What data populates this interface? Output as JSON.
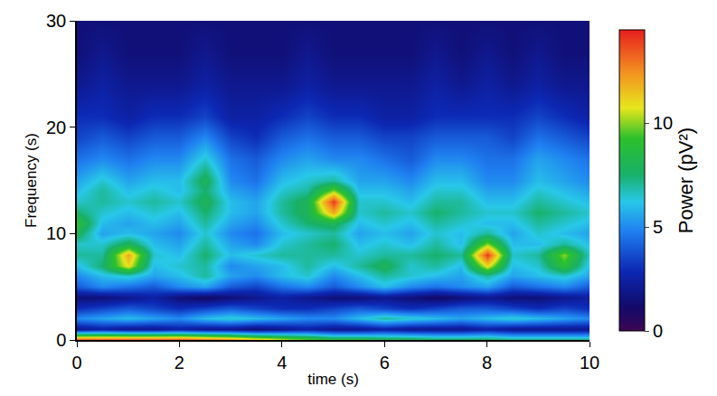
{
  "chart_data": {
    "type": "heatmap",
    "xlabel": "time (s)",
    "ylabel": "Frequency (s)",
    "xlim": [
      0,
      10
    ],
    "xticks": [
      0,
      2,
      4,
      6,
      8,
      10
    ],
    "ylim": [
      0,
      30
    ],
    "yticks": [
      0,
      10,
      20,
      30
    ],
    "x": [
      0,
      0.5,
      1,
      1.5,
      2,
      2.5,
      3,
      3.5,
      4,
      4.5,
      5,
      5.5,
      6,
      6.5,
      7,
      7.5,
      8,
      8.5,
      9,
      9.5,
      10
    ],
    "y": [
      0,
      1,
      2,
      3,
      4,
      5,
      6,
      7,
      8,
      9,
      10,
      11,
      12,
      13,
      14,
      15,
      17,
      19,
      21,
      24,
      27,
      30
    ],
    "z": [
      [
        14,
        14,
        14,
        14,
        14,
        13.5,
        13,
        12,
        11,
        10,
        9,
        9,
        8.5,
        8.5,
        8,
        8,
        8,
        7.5,
        7.5,
        7.5,
        7.5
      ],
      [
        2,
        2.5,
        2,
        2,
        2.5,
        2,
        2,
        1.5,
        2,
        2.5,
        2,
        2,
        2.5,
        2,
        2,
        2,
        2.5,
        2,
        2,
        2,
        2
      ],
      [
        5,
        5.5,
        6,
        5.5,
        5,
        6,
        6.5,
        6,
        5.5,
        5,
        5,
        6,
        7,
        6.5,
        6,
        5.5,
        6,
        6.5,
        6,
        5.5,
        5
      ],
      [
        3,
        3.5,
        4,
        3.5,
        3,
        3.5,
        4,
        3.5,
        3,
        3,
        3.5,
        4,
        3.5,
        3,
        3.5,
        4,
        4,
        3.5,
        3,
        3.5,
        3
      ],
      [
        1.5,
        1.5,
        2,
        2.5,
        1.5,
        1,
        1.5,
        2,
        2.5,
        2,
        1.5,
        1.5,
        2,
        1.5,
        1,
        1.5,
        2,
        1.5,
        1.5,
        2,
        2.5
      ],
      [
        4,
        5,
        4.5,
        4,
        5,
        5.5,
        4,
        3.5,
        4.5,
        5,
        4,
        5,
        6,
        5,
        4.5,
        5,
        5.5,
        4,
        4.5,
        5,
        4
      ],
      [
        5,
        6,
        6.5,
        5.5,
        6,
        7,
        5.5,
        5,
        6,
        6.5,
        5,
        6,
        7,
        6.5,
        6,
        5.5,
        7,
        5.5,
        6,
        6.5,
        5.5
      ],
      [
        6,
        7.5,
        11,
        6,
        6.5,
        7,
        5,
        5.5,
        6,
        7,
        6,
        7,
        8,
        6.5,
        7,
        6,
        11,
        6,
        6.5,
        9,
        6
      ],
      [
        7,
        7,
        12,
        6.5,
        6,
        7.5,
        6,
        6.5,
        7,
        7,
        7,
        6.5,
        7,
        7,
        7.5,
        7,
        14,
        6.5,
        7,
        10,
        6.5
      ],
      [
        6.5,
        6.5,
        8,
        6,
        5.5,
        7,
        5.5,
        5,
        6.5,
        7,
        7.5,
        6,
        6.5,
        6,
        7,
        6,
        10,
        6,
        6,
        7,
        6
      ],
      [
        8,
        5.5,
        6,
        5.5,
        5,
        6.5,
        5,
        4.5,
        6,
        6.5,
        7,
        5.5,
        6,
        5.5,
        6.5,
        6,
        7,
        5.5,
        6.5,
        6,
        5.5
      ],
      [
        9,
        6,
        5.5,
        6,
        5.5,
        7,
        5.5,
        5,
        6.5,
        7.5,
        8,
        6,
        6.5,
        6,
        7,
        6.5,
        6,
        6,
        7,
        6.5,
        6
      ],
      [
        7.5,
        6.5,
        6,
        6.5,
        6,
        7.5,
        6,
        5.5,
        7,
        8,
        12,
        6.5,
        7,
        6.5,
        7.5,
        7,
        6.5,
        6.5,
        7.5,
        7,
        6.5
      ],
      [
        6.5,
        7,
        6.5,
        7,
        6.5,
        8,
        6,
        5.5,
        7,
        8,
        14,
        6.5,
        6.5,
        6,
        7,
        7,
        6,
        6,
        7,
        6.5,
        6
      ],
      [
        6,
        7,
        6,
        6.5,
        6,
        7.5,
        5.5,
        5,
        6.5,
        7,
        10,
        6,
        6,
        5.5,
        6.5,
        6.5,
        5.5,
        5.5,
        6.5,
        6,
        5.5
      ],
      [
        5.5,
        6.5,
        5.5,
        6,
        6,
        8,
        5,
        4.5,
        6,
        6.5,
        7,
        5.5,
        5.5,
        5,
        6,
        6,
        5,
        5,
        6,
        5.5,
        5
      ],
      [
        4.5,
        5,
        4.5,
        5,
        5,
        6.5,
        4.5,
        4,
        5,
        5.5,
        5,
        5,
        4.5,
        4,
        5,
        5,
        4.5,
        4.5,
        5.5,
        5,
        4.5
      ],
      [
        3.5,
        4,
        3.5,
        4,
        4,
        5,
        3.5,
        3,
        4,
        4.5,
        4,
        4,
        3.5,
        3.5,
        4,
        4,
        4,
        3.5,
        4.5,
        4,
        3.5
      ],
      [
        3,
        3,
        2.5,
        3,
        3,
        3.5,
        2.5,
        2.5,
        3,
        3.5,
        3,
        3,
        2.5,
        2.5,
        3,
        3,
        3,
        3,
        3.5,
        3,
        2.5
      ],
      [
        2,
        2.5,
        2,
        2,
        2,
        2.5,
        2,
        2,
        2,
        2.5,
        2,
        2,
        2,
        2,
        2.5,
        2,
        2.5,
        2,
        2.5,
        2,
        2
      ],
      [
        1.5,
        2,
        1.5,
        1.5,
        1.5,
        2,
        1.5,
        1.5,
        1.5,
        2,
        1.5,
        1.5,
        1.5,
        1.5,
        2,
        1.5,
        2,
        1.5,
        2,
        1.5,
        1.5
      ],
      [
        1.5,
        1.5,
        1.5,
        1.5,
        1.5,
        1.5,
        1.5,
        1.5,
        1.5,
        1.5,
        1.5,
        1.5,
        1.5,
        1.5,
        1.5,
        1.5,
        1.5,
        1.5,
        1.5,
        1.5,
        1.5
      ]
    ],
    "colorbar": {
      "title": "Power (pV²)",
      "range": [
        0,
        14.5
      ],
      "ticks": [
        0,
        5,
        10
      ]
    },
    "grid": false
  }
}
